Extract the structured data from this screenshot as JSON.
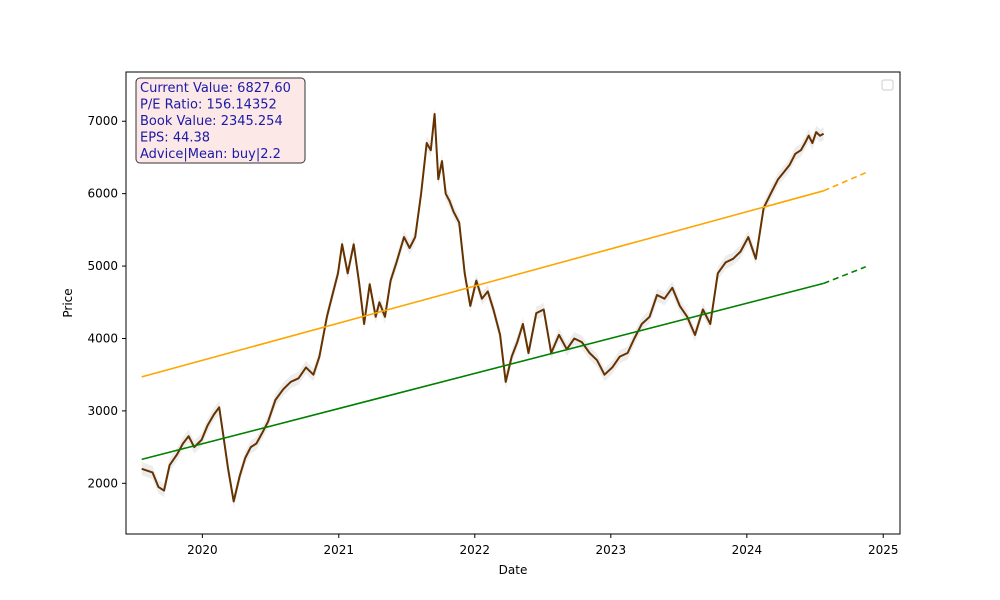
{
  "chart_data": {
    "type": "line",
    "title": "",
    "xlabel": "Date",
    "ylabel": "Price",
    "xlim": [
      "2019-06-10",
      "2025-02-15"
    ],
    "ylim": [
      1300,
      7680
    ],
    "x_ticks": [
      "2020",
      "2021",
      "2022",
      "2023",
      "2024",
      "2025"
    ],
    "y_ticks": [
      2000,
      3000,
      4000,
      5000,
      6000,
      7000
    ],
    "grid": false,
    "legend": {
      "placement": "top-right",
      "entries": []
    },
    "colors": {
      "price": "#663300",
      "upper_trend": "#ffa500",
      "lower_trend": "#008000",
      "info_text": "#1a1aa6",
      "info_bg": "#fde8e8",
      "info_border": "#333333"
    },
    "info_box": {
      "lines": [
        "Current Value: 6827.60",
        "P/E Ratio: 156.14352",
        "Book Value: 2345.254",
        "EPS: 44.38",
        "Advice|Mean: buy|2.2"
      ]
    },
    "series": [
      {
        "role": "price",
        "x": [
          "2019-07-22",
          "2019-08-20",
          "2019-09-05",
          "2019-09-20",
          "2019-10-05",
          "2019-10-25",
          "2019-11-10",
          "2019-11-25",
          "2019-12-10",
          "2019-12-30",
          "2020-01-15",
          "2020-02-01",
          "2020-02-15",
          "2020-02-25",
          "2020-03-10",
          "2020-03-25",
          "2020-04-10",
          "2020-04-25",
          "2020-05-10",
          "2020-05-25",
          "2020-06-10",
          "2020-06-25",
          "2020-07-15",
          "2020-08-05",
          "2020-08-25",
          "2020-09-15",
          "2020-10-05",
          "2020-10-25",
          "2020-11-10",
          "2020-11-30",
          "2020-12-15",
          "2020-12-30",
          "2021-01-10",
          "2021-01-25",
          "2021-02-10",
          "2021-02-25",
          "2021-03-10",
          "2021-03-25",
          "2021-04-10",
          "2021-04-20",
          "2021-05-05",
          "2021-05-20",
          "2021-06-05",
          "2021-06-25",
          "2021-07-10",
          "2021-07-25",
          "2021-08-10",
          "2021-08-25",
          "2021-09-05",
          "2021-09-15",
          "2021-09-25",
          "2021-10-05",
          "2021-10-15",
          "2021-10-25",
          "2021-11-05",
          "2021-11-20",
          "2021-12-05",
          "2021-12-20",
          "2022-01-05",
          "2022-01-20",
          "2022-02-05",
          "2022-02-20",
          "2022-03-10",
          "2022-03-25",
          "2022-04-10",
          "2022-04-25",
          "2022-05-10",
          "2022-05-25",
          "2022-06-15",
          "2022-07-05",
          "2022-07-25",
          "2022-08-15",
          "2022-09-05",
          "2022-09-25",
          "2022-10-15",
          "2022-11-05",
          "2022-11-25",
          "2022-12-15",
          "2023-01-05",
          "2023-01-25",
          "2023-02-15",
          "2023-03-05",
          "2023-03-25",
          "2023-04-15",
          "2023-05-05",
          "2023-05-25",
          "2023-06-15",
          "2023-07-05",
          "2023-07-25",
          "2023-08-15",
          "2023-09-05",
          "2023-09-25",
          "2023-10-15",
          "2023-11-05",
          "2023-11-25",
          "2023-12-15",
          "2024-01-05",
          "2024-01-25",
          "2024-02-15",
          "2024-03-05",
          "2024-03-25",
          "2024-04-10",
          "2024-04-25",
          "2024-05-10",
          "2024-05-25",
          "2024-06-05",
          "2024-06-15",
          "2024-06-25",
          "2024-07-05",
          "2024-07-15",
          "2024-07-25"
        ],
        "y": [
          2200,
          2150,
          1950,
          1900,
          2250,
          2400,
          2550,
          2650,
          2500,
          2600,
          2800,
          2950,
          3050,
          2700,
          2200,
          1750,
          2100,
          2350,
          2500,
          2550,
          2700,
          2850,
          3150,
          3300,
          3400,
          3450,
          3600,
          3500,
          3750,
          4300,
          4600,
          4900,
          5300,
          4900,
          5300,
          4750,
          4200,
          4750,
          4300,
          4500,
          4300,
          4800,
          5050,
          5400,
          5250,
          5400,
          6000,
          6700,
          6600,
          7100,
          6200,
          6450,
          6000,
          5900,
          5750,
          5600,
          4900,
          4450,
          4800,
          4550,
          4650,
          4400,
          4050,
          3400,
          3750,
          3950,
          4200,
          3800,
          4350,
          4400,
          3800,
          4050,
          3850,
          4000,
          3950,
          3800,
          3700,
          3500,
          3600,
          3750,
          3800,
          4000,
          4200,
          4300,
          4600,
          4550,
          4700,
          4450,
          4300,
          4050,
          4400,
          4200,
          4900,
          5050,
          5100,
          5200,
          5400,
          5100,
          5800,
          6000,
          6200,
          6300,
          6400,
          6550,
          6600,
          6700,
          6800,
          6700,
          6850,
          6800,
          6828
        ]
      },
      {
        "role": "upper_trend",
        "x": [
          "2019-07-22",
          "2024-07-25",
          "2024-11-15"
        ],
        "y": [
          3470,
          6040,
          6290
        ],
        "projection_from": "2024-07-25"
      },
      {
        "role": "lower_trend",
        "x": [
          "2019-07-22",
          "2024-07-25",
          "2024-11-15"
        ],
        "y": [
          2330,
          4760,
          4990
        ],
        "projection_from": "2024-07-25"
      }
    ]
  }
}
